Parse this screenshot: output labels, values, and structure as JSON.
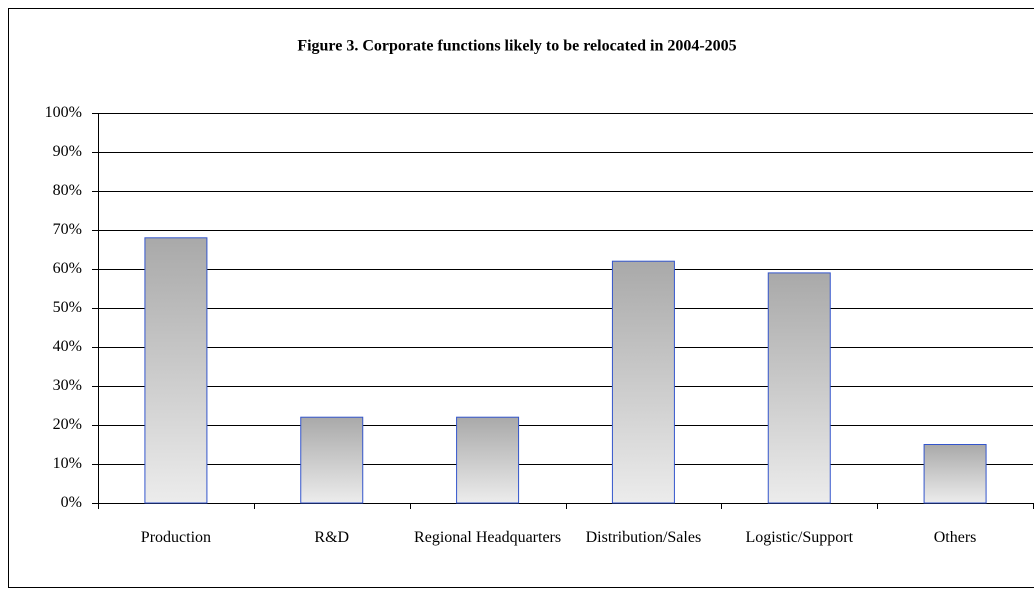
{
  "chart_data": {
    "type": "bar",
    "title": "Figure 3. Corporate functions likely to be relocated in 2004-2005",
    "categories": [
      "Production",
      "R&D",
      "Regional Headquarters",
      "Distribution/Sales",
      "Logistic/Support",
      "Others"
    ],
    "values": [
      68,
      22,
      22,
      62,
      59,
      15
    ],
    "color": "#3355cc",
    "ylim": [
      0,
      100
    ],
    "yticks": [
      {
        "value": 0,
        "label": "0%"
      },
      {
        "value": 10,
        "label": "10%"
      },
      {
        "value": 20,
        "label": "20%"
      },
      {
        "value": 30,
        "label": "30%"
      },
      {
        "value": 40,
        "label": "40%"
      },
      {
        "value": 50,
        "label": "50%"
      },
      {
        "value": 60,
        "label": "60%"
      },
      {
        "value": 70,
        "label": "70%"
      },
      {
        "value": 80,
        "label": "80%"
      },
      {
        "value": 90,
        "label": "90%"
      },
      {
        "value": 100,
        "label": "100%"
      }
    ],
    "grid": true
  }
}
